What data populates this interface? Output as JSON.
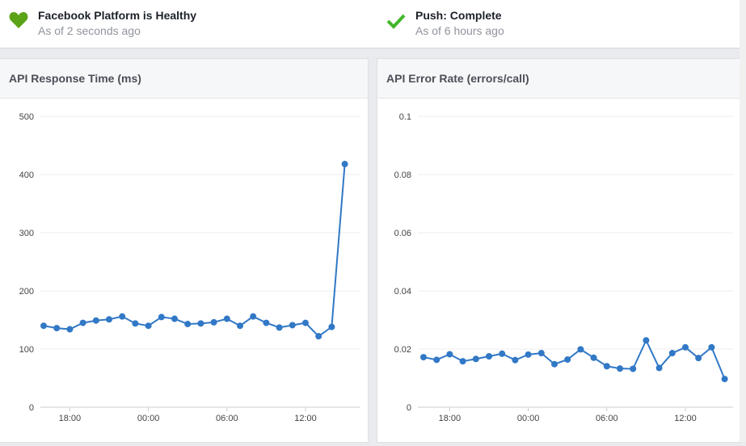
{
  "status": [
    {
      "title": "Facebook Platform is Healthy",
      "subtitle": "As of 2 seconds ago",
      "icon": "heart-icon",
      "color": "#5ba317"
    },
    {
      "title": "Push: Complete",
      "subtitle": "As of 6 hours ago",
      "icon": "checkmark-icon",
      "color": "#42b72a"
    }
  ],
  "chart_data": [
    {
      "type": "line",
      "title": "API Response Time (ms)",
      "ylim": [
        0,
        500
      ],
      "yticks": [
        "0",
        "100",
        "200",
        "300",
        "400",
        "500"
      ],
      "xticks": [
        "18:00",
        "00:00",
        "06:00",
        "12:00"
      ],
      "x_hours_start": 16,
      "color": "#3178c6",
      "values": [
        140,
        136,
        134,
        145,
        149,
        151,
        156,
        144,
        140,
        155,
        152,
        143,
        144,
        146,
        152,
        140,
        156,
        145,
        137,
        141,
        145,
        122,
        138,
        418
      ]
    },
    {
      "type": "line",
      "title": "API Error Rate (errors/call)",
      "ylim": [
        0,
        0.1
      ],
      "yticks": [
        "0",
        "0.02",
        "0.04",
        "0.06",
        "0.08",
        "0.1"
      ],
      "xticks": [
        "18:00",
        "00:00",
        "06:00",
        "12:00"
      ],
      "x_hours_start": 16,
      "color": "#3178c6",
      "values": [
        0.0172,
        0.0163,
        0.0182,
        0.0158,
        0.0166,
        0.0175,
        0.0184,
        0.0162,
        0.0181,
        0.0186,
        0.0148,
        0.0164,
        0.0199,
        0.017,
        0.0141,
        0.0133,
        0.0132,
        0.023,
        0.0135,
        0.0186,
        0.0206,
        0.0169,
        0.0206,
        0.0097
      ]
    }
  ]
}
